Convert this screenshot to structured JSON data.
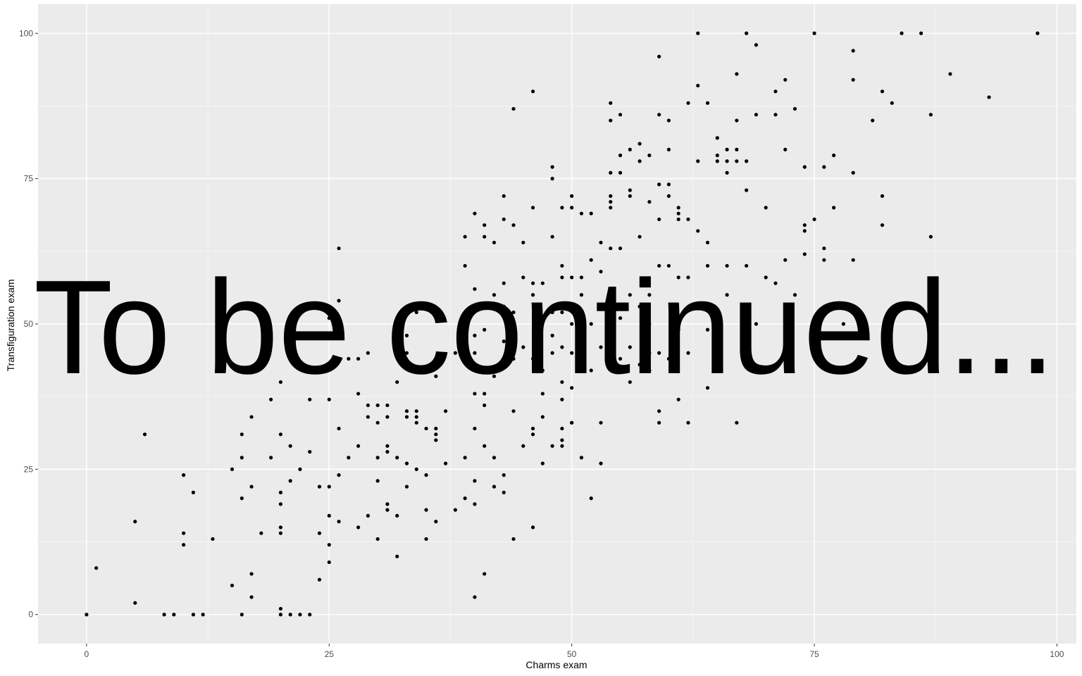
{
  "colors": {
    "panel_background": "#ebebeb",
    "grid_major": "#ffffff",
    "grid_minor": "#f5f5f5",
    "point": "#000000",
    "tick_label": "#4d4d4d",
    "overlay_text": "#000000"
  },
  "overlay_text": "To be continued...",
  "chart_data": {
    "type": "scatter",
    "title": "",
    "xlabel": "Charms exam",
    "ylabel": "Transfiguration exam",
    "xlim": [
      -5,
      102
    ],
    "ylim": [
      -5,
      105
    ],
    "x_ticks": [
      0,
      25,
      50,
      75,
      100
    ],
    "y_ticks": [
      0,
      25,
      50,
      75,
      100
    ],
    "x_tick_labels": [
      "0",
      "25",
      "50",
      "75",
      "100"
    ],
    "y_tick_labels": [
      "0",
      "25",
      "50",
      "75",
      "100"
    ],
    "grid": true,
    "legend": "none",
    "x": [
      0,
      1,
      5,
      5,
      6,
      8,
      9,
      10,
      10,
      10,
      11,
      11,
      12,
      13,
      15,
      15,
      16,
      16,
      16,
      16,
      17,
      17,
      17,
      17,
      18,
      19,
      19,
      20,
      20,
      20,
      20,
      20,
      20,
      20,
      20,
      21,
      21,
      21,
      22,
      22,
      23,
      23,
      23,
      23,
      24,
      24,
      24,
      25,
      25,
      25,
      25,
      25,
      25,
      26,
      26,
      26,
      26,
      26,
      27,
      27,
      28,
      28,
      28,
      28,
      29,
      29,
      29,
      29,
      30,
      30,
      30,
      30,
      30,
      31,
      31,
      31,
      31,
      31,
      31,
      32,
      32,
      32,
      32,
      33,
      33,
      33,
      33,
      33,
      33,
      34,
      34,
      34,
      34,
      34,
      35,
      35,
      35,
      35,
      36,
      36,
      36,
      36,
      36,
      37,
      37,
      38,
      38,
      39,
      39,
      39,
      39,
      40,
      40,
      40,
      40,
      40,
      40,
      40,
      40,
      40,
      41,
      41,
      41,
      41,
      41,
      41,
      41,
      42,
      42,
      42,
      42,
      42,
      43,
      43,
      43,
      43,
      43,
      43,
      43,
      43,
      44,
      44,
      44,
      44,
      44,
      44,
      45,
      45,
      45,
      45,
      46,
      46,
      46,
      46,
      46,
      46,
      46,
      46,
      47,
      47,
      47,
      47,
      47,
      48,
      48,
      48,
      48,
      48,
      48,
      48,
      49,
      49,
      49,
      49,
      49,
      49,
      49,
      49,
      49,
      49,
      50,
      50,
      50,
      50,
      50,
      50,
      50,
      50,
      51,
      51,
      51,
      51,
      51,
      52,
      52,
      52,
      52,
      52,
      53,
      53,
      53,
      53,
      53,
      54,
      54,
      54,
      54,
      54,
      54,
      54,
      55,
      55,
      55,
      55,
      55,
      55,
      56,
      56,
      56,
      56,
      56,
      56,
      57,
      57,
      57,
      57,
      57,
      58,
      58,
      58,
      58,
      58,
      58,
      59,
      59,
      59,
      59,
      59,
      59,
      59,
      59,
      60,
      60,
      60,
      60,
      60,
      60,
      61,
      61,
      61,
      61,
      61,
      61,
      62,
      62,
      62,
      62,
      62,
      63,
      63,
      63,
      63,
      64,
      64,
      64,
      64,
      64,
      65,
      65,
      65,
      65,
      66,
      66,
      66,
      66,
      66,
      67,
      67,
      67,
      67,
      67,
      68,
      68,
      68,
      68,
      69,
      69,
      69,
      70,
      70,
      71,
      71,
      71,
      72,
      72,
      72,
      73,
      73,
      74,
      74,
      74,
      74,
      75,
      75,
      76,
      76,
      76,
      77,
      77,
      78,
      79,
      79,
      79,
      79,
      81,
      82,
      82,
      82,
      83,
      84,
      86,
      87,
      87,
      89,
      93,
      98
    ],
    "y": [
      0,
      8,
      2,
      16,
      31,
      0,
      0,
      24,
      14,
      12,
      21,
      0,
      0,
      13,
      25,
      5,
      31,
      27,
      20,
      0,
      34,
      22,
      7,
      3,
      14,
      37,
      27,
      31,
      21,
      19,
      15,
      14,
      1,
      0,
      40,
      29,
      23,
      0,
      25,
      0,
      42,
      37,
      28,
      0,
      22,
      14,
      6,
      51,
      37,
      22,
      17,
      12,
      9,
      63,
      54,
      32,
      24,
      16,
      44,
      27,
      44,
      29,
      15,
      38,
      45,
      36,
      34,
      17,
      36,
      33,
      27,
      23,
      13,
      36,
      34,
      29,
      28,
      19,
      18,
      40,
      27,
      17,
      10,
      48,
      45,
      35,
      34,
      26,
      22,
      52,
      35,
      34,
      33,
      25,
      32,
      24,
      18,
      13,
      32,
      31,
      30,
      16,
      41,
      35,
      26,
      45,
      18,
      65,
      60,
      27,
      20,
      69,
      56,
      48,
      45,
      38,
      32,
      23,
      19,
      3,
      67,
      65,
      49,
      38,
      36,
      29,
      7,
      64,
      55,
      41,
      27,
      22,
      72,
      68,
      57,
      53,
      47,
      43,
      24,
      21,
      87,
      67,
      52,
      44,
      35,
      13,
      64,
      58,
      46,
      29,
      90,
      70,
      57,
      55,
      44,
      32,
      31,
      15,
      57,
      42,
      38,
      34,
      26,
      77,
      75,
      65,
      52,
      48,
      45,
      29,
      70,
      60,
      58,
      52,
      46,
      40,
      37,
      32,
      30,
      29,
      72,
      70,
      58,
      50,
      45,
      39,
      33,
      33,
      69,
      58,
      55,
      46,
      27,
      69,
      61,
      50,
      42,
      20,
      64,
      59,
      46,
      33,
      26,
      88,
      85,
      76,
      72,
      71,
      70,
      63,
      86,
      79,
      76,
      63,
      51,
      44,
      80,
      73,
      72,
      55,
      46,
      40,
      81,
      78,
      65,
      53,
      43,
      79,
      71,
      55,
      50,
      45,
      42,
      96,
      86,
      74,
      68,
      60,
      45,
      35,
      33,
      85,
      80,
      74,
      72,
      60,
      44,
      70,
      69,
      68,
      58,
      49,
      37,
      88,
      68,
      58,
      45,
      33,
      100,
      91,
      78,
      66,
      88,
      64,
      60,
      49,
      39,
      82,
      79,
      78,
      45,
      80,
      78,
      76,
      60,
      55,
      93,
      85,
      80,
      78,
      33,
      100,
      78,
      73,
      60,
      98,
      86,
      50,
      70,
      58,
      90,
      86,
      57,
      92,
      80,
      61,
      87,
      55,
      77,
      67,
      66,
      62,
      100,
      68,
      77,
      63,
      61,
      79,
      70,
      50,
      97,
      92,
      76,
      61,
      85,
      90,
      72,
      67,
      88,
      100,
      100,
      86,
      65,
      93,
      89,
      100
    ]
  }
}
